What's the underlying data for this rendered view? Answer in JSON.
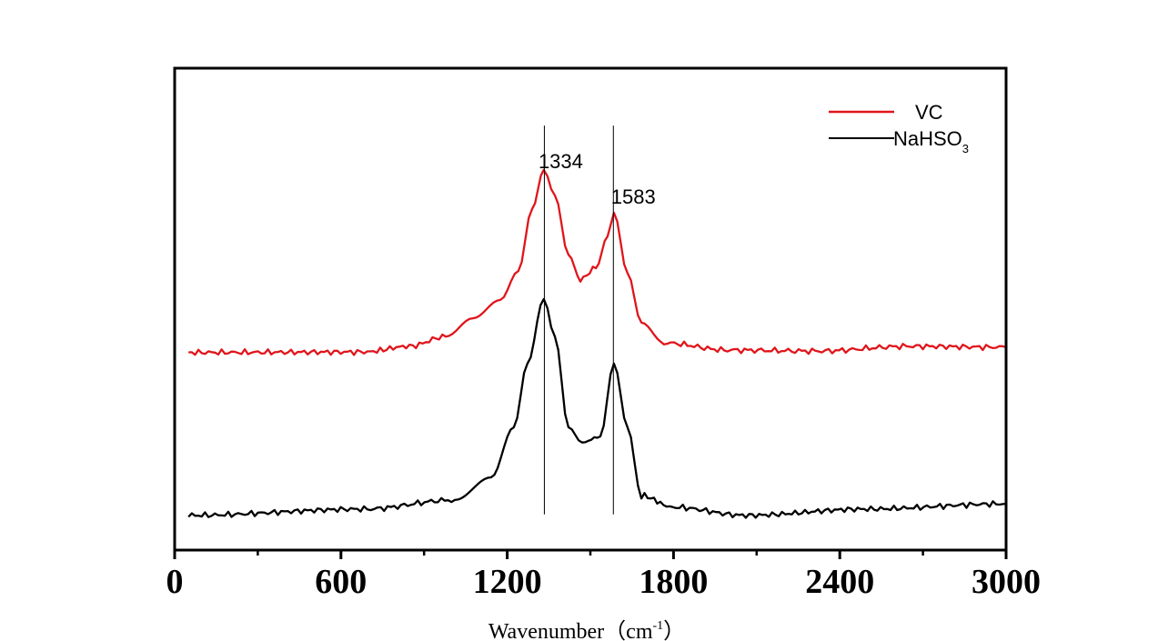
{
  "chart_data": {
    "type": "line",
    "title": "",
    "xlabel": "Wavenumber（cm",
    "xlabel_sup": "-1",
    "xlabel_end": "）",
    "ylabel": "",
    "xlim": [
      0,
      3000
    ],
    "ylim": [
      0,
      100
    ],
    "xticks": [
      0,
      600,
      1200,
      1800,
      2400,
      3000
    ],
    "xtick_labels": [
      "0",
      "600",
      "1200",
      "1800",
      "2400",
      "3000"
    ],
    "minor_xticks": [
      300,
      900,
      1500,
      2100,
      2700
    ],
    "grid": false,
    "legend_position": "top-right",
    "series": [
      {
        "name": "VC",
        "color": "#e0151b",
        "x": [
          50,
          683,
          847,
          978,
          1076,
          1175,
          1240,
          1290,
          1332,
          1372,
          1421,
          1464,
          1520,
          1562,
          1585,
          1634,
          1684,
          1766,
          1995,
          2324,
          2652,
          3000
        ],
        "y": [
          41.0,
          41.1,
          42.3,
          44.3,
          48.1,
          51.9,
          57.9,
          70.8,
          78.9,
          73.6,
          61.3,
          56.2,
          58.5,
          65.1,
          70.0,
          57.5,
          47.2,
          43.0,
          41.5,
          41.3,
          42.3,
          42.1
        ]
      },
      {
        "name": "NaHSO",
        "name_sub": "3",
        "color": "#000000",
        "x": [
          50,
          683,
          1011,
          1142,
          1224,
          1273,
          1332,
          1372,
          1421,
          1470,
          1536,
          1585,
          1634,
          1684,
          1798,
          2061,
          2488,
          3000
        ],
        "y": [
          7.2,
          8.5,
          10.4,
          15.1,
          25.5,
          38.7,
          52.1,
          44.3,
          25.5,
          22.3,
          23.6,
          38.7,
          25.5,
          11.3,
          8.9,
          7.2,
          8.5,
          9.6
        ]
      }
    ],
    "annotations": [
      {
        "text": "1334",
        "x": 1334,
        "line_from": 7.4,
        "line_to": 88.1
      },
      {
        "text": "1583",
        "x": 1583,
        "line_from": 7.4,
        "line_to": 88.1
      }
    ]
  }
}
